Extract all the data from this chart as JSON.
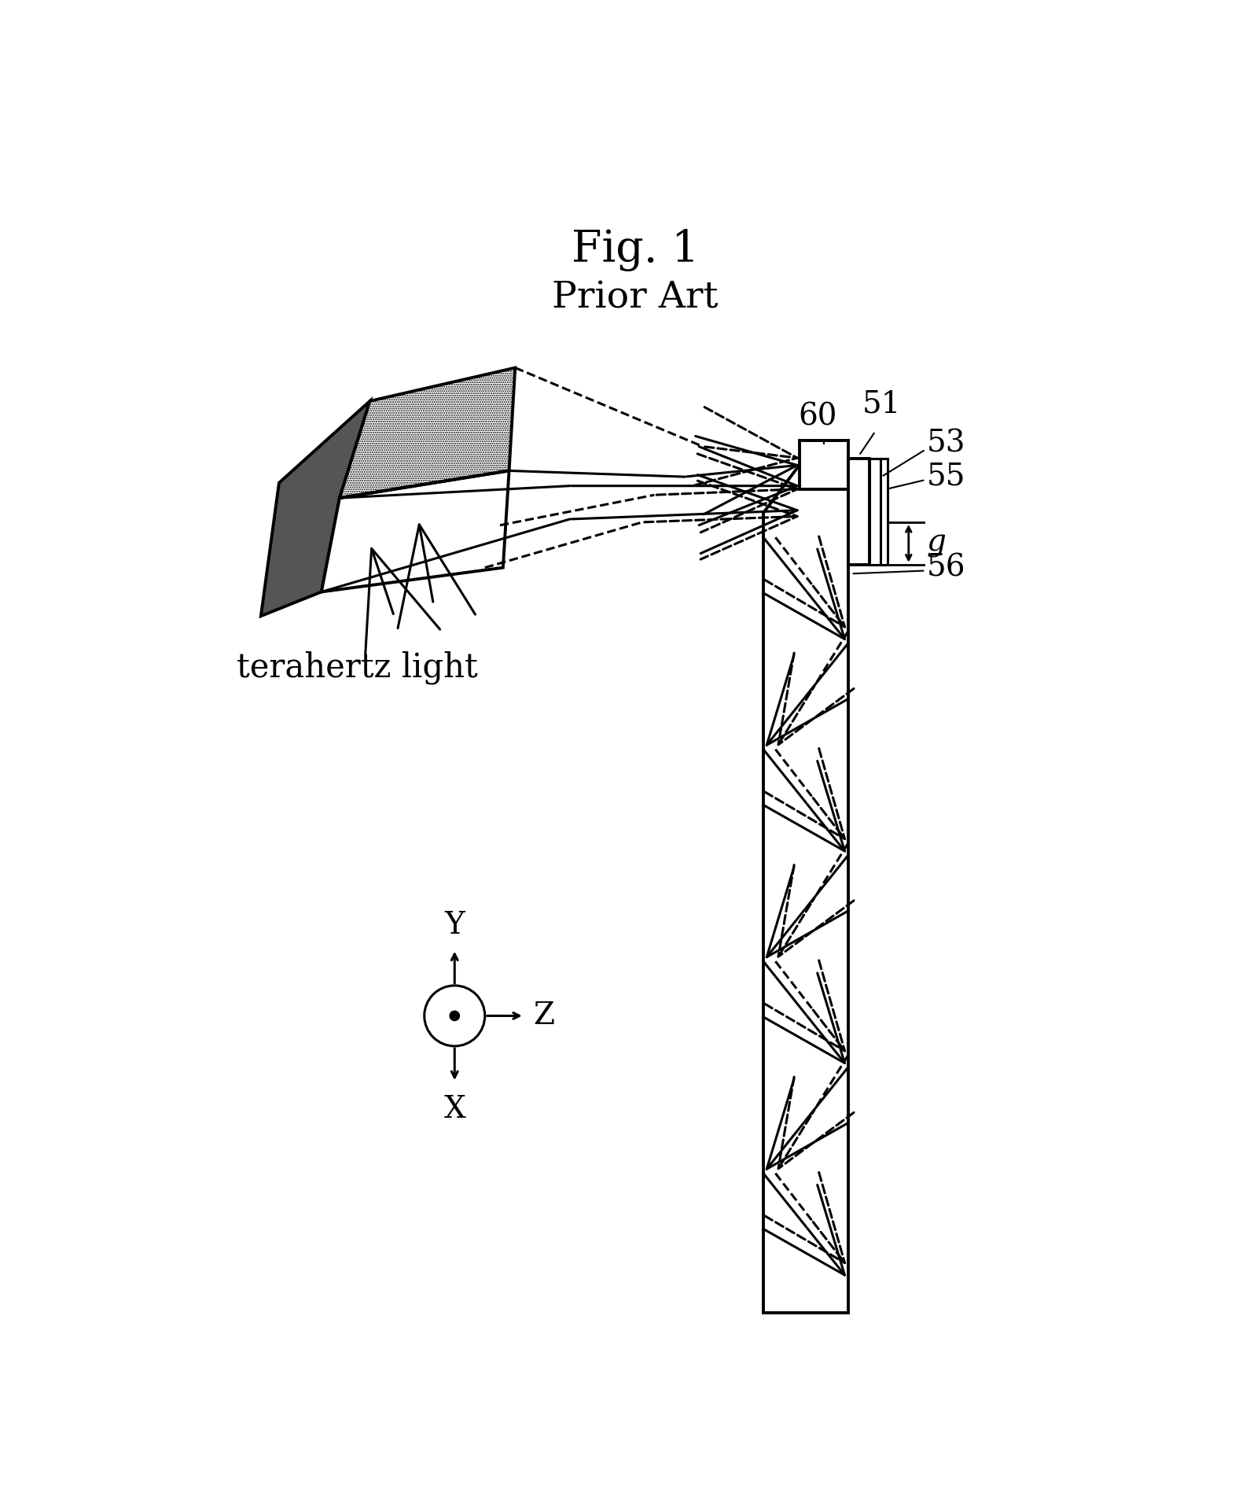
{
  "title": "Fig. 1",
  "subtitle": "Prior Art",
  "bg_color": "#ffffff",
  "label_51": "51",
  "label_53": "53",
  "label_55": "55",
  "label_56": "56",
  "label_60": "60",
  "label_g": "g",
  "label_terahertz": "terahertz light",
  "label_Y": "Y",
  "label_Z": "Z",
  "label_X": "X",
  "fig_w": 1576,
  "fig_h": 1907
}
